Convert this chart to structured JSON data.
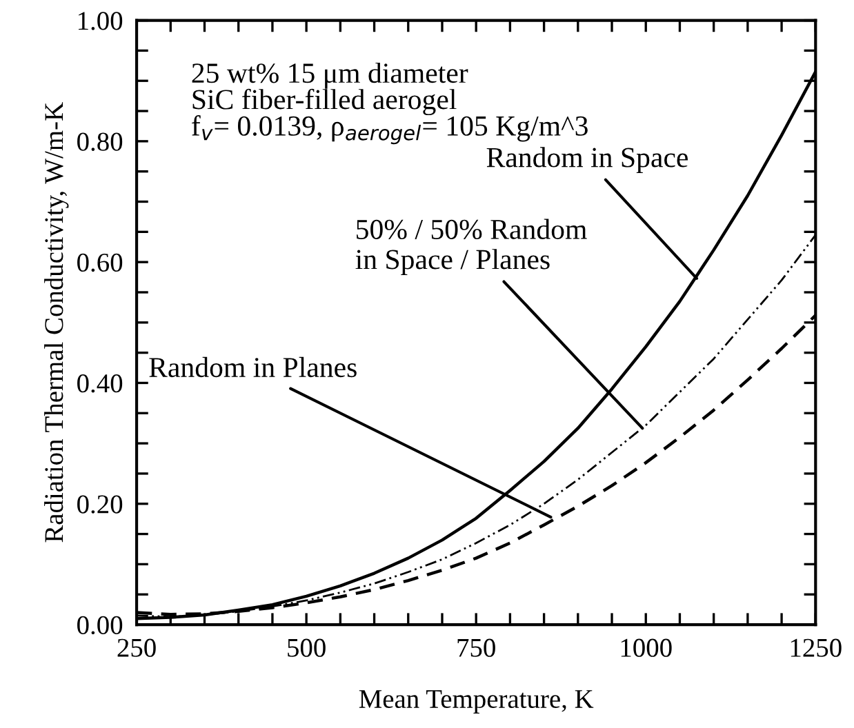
{
  "chart_data": {
    "type": "line",
    "xlabel": "Mean Temperature, K",
    "ylabel": "Radiation Thermal Conductivity, W/m-K",
    "x": [
      250,
      300,
      350,
      400,
      450,
      500,
      550,
      600,
      650,
      700,
      750,
      800,
      850,
      900,
      950,
      1000,
      1050,
      1100,
      1150,
      1200,
      1250
    ],
    "series": [
      {
        "color": "#000000",
        "line_style": "solid",
        "values": [
          0.01,
          0.012,
          0.016,
          0.024,
          0.033,
          0.047,
          0.064,
          0.085,
          0.11,
          0.14,
          0.176,
          0.222,
          0.27,
          0.325,
          0.39,
          0.46,
          0.535,
          0.62,
          0.71,
          0.81,
          0.915
        ]
      },
      {
        "color": "#000000",
        "line_style": "dotted",
        "values": [
          0.015,
          0.013,
          0.016,
          0.022,
          0.03,
          0.04,
          0.053,
          0.068,
          0.087,
          0.108,
          0.135,
          0.165,
          0.2,
          0.24,
          0.285,
          0.33,
          0.385,
          0.44,
          0.505,
          0.57,
          0.645
        ]
      },
      {
        "color": "#000000",
        "line_style": "dashed",
        "values": [
          0.02,
          0.017,
          0.018,
          0.022,
          0.028,
          0.036,
          0.046,
          0.058,
          0.073,
          0.09,
          0.11,
          0.135,
          0.165,
          0.196,
          0.23,
          0.268,
          0.31,
          0.355,
          0.405,
          0.457,
          0.512
        ]
      }
    ],
    "xlim": [
      250,
      1250
    ],
    "ylim": [
      0,
      1
    ],
    "xticks": [
      250,
      {
        "value": 300,
        "label": null
      },
      {
        "value": 350,
        "label": null
      },
      {
        "value": 400,
        "label": null
      },
      {
        "value": 450,
        "label": null
      },
      500,
      {
        "value": 550,
        "label": null
      },
      {
        "value": 600,
        "label": null
      },
      {
        "value": 650,
        "label": null
      },
      {
        "value": 700,
        "label": null
      },
      750,
      {
        "value": 800,
        "label": null
      },
      {
        "value": 850,
        "label": null
      },
      {
        "value": 900,
        "label": null
      },
      {
        "value": 950,
        "label": null
      },
      1000,
      {
        "value": 1050,
        "label": null
      },
      {
        "value": 1100,
        "label": null
      },
      {
        "value": 1150,
        "label": null
      },
      {
        "value": 1200,
        "label": null
      },
      1250
    ],
    "yticks": [
      {
        "value": 0,
        "label": "0.00"
      },
      {
        "value": 0.05,
        "label": null
      },
      {
        "value": 0.1,
        "label": null
      },
      {
        "value": 0.15,
        "label": null
      },
      {
        "value": 0.2,
        "label": "0.20"
      },
      {
        "value": 0.25,
        "label": null
      },
      {
        "value": 0.3,
        "label": null
      },
      {
        "value": 0.35,
        "label": null
      },
      {
        "value": 0.4,
        "label": "0.40"
      },
      {
        "value": 0.45,
        "label": null
      },
      {
        "value": 0.5,
        "label": null
      },
      {
        "value": 0.55,
        "label": null
      },
      {
        "value": 0.6,
        "label": "0.60"
      },
      {
        "value": 0.65,
        "label": null
      },
      {
        "value": 0.7,
        "label": null
      },
      {
        "value": 0.75,
        "label": null
      },
      {
        "value": 0.8,
        "label": "0.80"
      },
      {
        "value": 0.85,
        "label": null
      },
      {
        "value": 0.9,
        "label": null
      },
      {
        "value": 0.95,
        "label": null
      },
      {
        "value": 1,
        "label": "1.00"
      }
    ],
    "grid": false,
    "legend": false,
    "annotations": [
      "25 wt% 15 μm diameter\nSiC fiber-filled aerogel\nf$_{v}$= 0.0139, ρ$_{aerogel}$= 105 Kg/m^3",
      {
        "text": "Random in Space",
        "x": 1075,
        "y": 0.573
      },
      {
        "text": "50% / 50% Random\nin Space / Planes",
        "x": 995,
        "y": 0.325
      },
      {
        "text": "Random in Planes",
        "x": 860,
        "y": 0.178
      }
    ]
  }
}
